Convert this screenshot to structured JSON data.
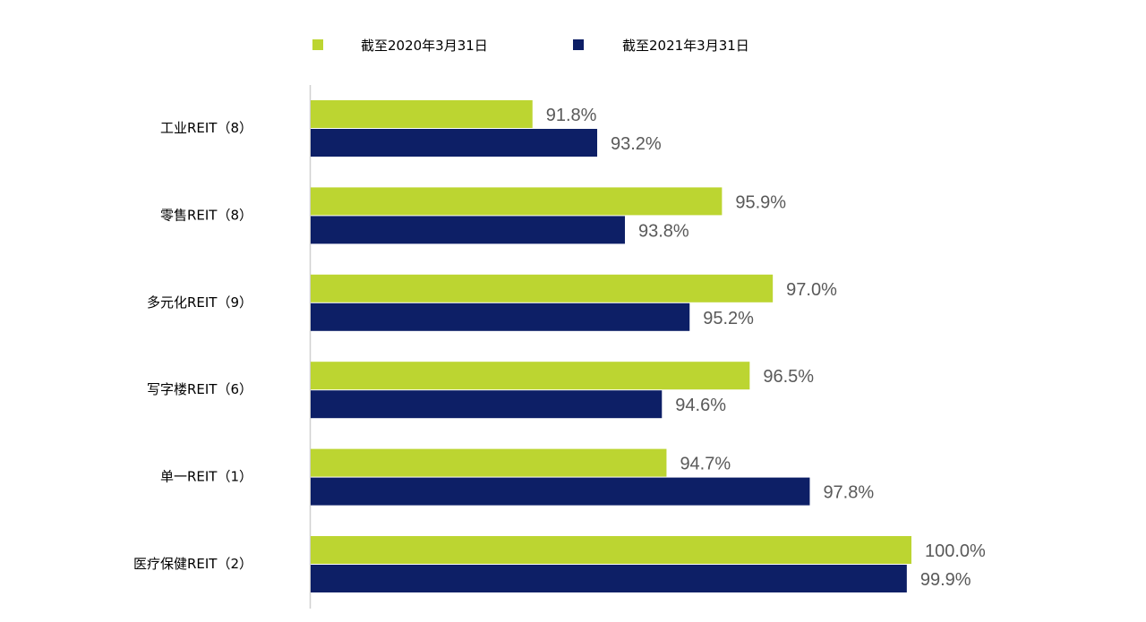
{
  "chart_data": {
    "type": "bar",
    "orientation": "horizontal",
    "categories": [
      "工业REIT（8）",
      "零售REIT（8）",
      "多元化REIT（9）",
      "写字楼REIT（6）",
      "单一REIT（1）",
      "医疗保健REIT（2）"
    ],
    "series": [
      {
        "name": "截至2020年3月31日",
        "color": "#bcd531",
        "values": [
          91.8,
          95.9,
          97.0,
          96.5,
          94.7,
          100.0
        ],
        "labels": [
          "91.8%",
          "95.9%",
          "97.0%",
          "96.5%",
          "94.7%",
          "100.0%"
        ]
      },
      {
        "name": "截至2021年3月31日",
        "color": "#0d1f66",
        "values": [
          93.2,
          93.8,
          95.2,
          94.6,
          97.8,
          99.9
        ],
        "labels": [
          "93.2%",
          "93.8%",
          "95.2%",
          "94.6%",
          "97.8%",
          "99.9%"
        ]
      }
    ],
    "xlim": [
      87,
      100
    ],
    "legend_position": "top",
    "grid": false,
    "title": "",
    "xlabel": "",
    "ylabel": ""
  }
}
